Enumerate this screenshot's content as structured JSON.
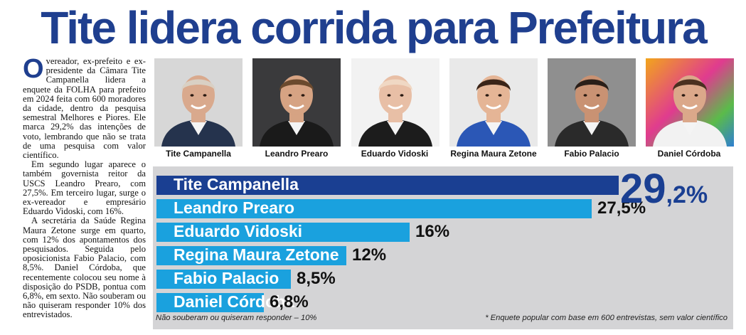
{
  "headline": "Tite lidera corrida para Prefeitura",
  "article": {
    "dropcap": "O",
    "paragraphs": [
      "vereador, ex-prefeito e ex-presidente da Câmara Tite Campanella lidera a enquete da FOLHA para prefeito em 2024 feita com 600 moradores da cidade, dentro da pesquisa semestral Melhores e Piores. Ele marca 29,2% das intenções de voto, lembrando que não se trata de uma pesquisa com valor científico.",
      "Em segundo lugar aparece o também governista reitor da USCS Leandro Prearo, com 27,5%. Em terceiro lugar, surge o ex-vereador e empresário Eduardo Vidoski, com 16%.",
      "A secretária da Saúde Regina Maura Zetone surge em quarto, com 12% dos apontamentos dos pesquisados. Seguida pelo oposicionista Fabio Palacio, com 8,5%. Daniel Córdoba, que recentemente colocou seu nome à disposição do PSDB, pontua com 6,8%, em sexto. Não souberam ou não quiseram responder 10% dos entrevistados."
    ]
  },
  "candidates": [
    {
      "name": "Tite Campanella",
      "photo_bg": "#d7d7d7",
      "suit": "#25334d",
      "hair": "#d9d0c4",
      "skin": "#d9a98d"
    },
    {
      "name": "Leandro Prearo",
      "photo_bg": "#3a3a3c",
      "suit": "#1a1a1a",
      "hair": "#6b4a2e",
      "skin": "#d6a383"
    },
    {
      "name": "Eduardo Vidoski",
      "photo_bg": "#f2f2f2",
      "suit": "#1c1c1c",
      "hair": "#f0d8c4",
      "skin": "#e8bfa6"
    },
    {
      "name": "Regina Maura Zetone",
      "photo_bg": "#e9e9e9",
      "suit": "#2b57b6",
      "hair": "#3a2418",
      "skin": "#e5b596"
    },
    {
      "name": "Fabio Palacio",
      "photo_bg": "#8f8f8f",
      "suit": "#2a2a2a",
      "hair": "#2a1f19",
      "skin": "#c99273"
    },
    {
      "name": "Daniel Córdoba",
      "photo_bg": "#5bbb4a",
      "suit": "#f2f2f2",
      "hair": "#4a3020",
      "skin": "#dba88a"
    }
  ],
  "chart_data": {
    "type": "bar",
    "categories": [
      "Tite Campanella",
      "Leandro Prearo",
      "Eduardo Vidoski",
      "Regina Maura Zetone",
      "Fabio Palacio",
      "Daniel Córdoba"
    ],
    "values": [
      29.2,
      27.5,
      16,
      12,
      8.5,
      6.8
    ],
    "value_labels": [
      "29,2%",
      "27,5%",
      "16%",
      "12%",
      "8,5%",
      "6,8%"
    ],
    "top_value_integer": "29",
    "top_value_decimal": ",2%",
    "colors": {
      "leader": "#1a3f92",
      "others": "#1aa1de",
      "panel": "#d4d4d6"
    }
  },
  "footnotes": {
    "left": "Não souberam ou quiseram responder – 10%",
    "right": "* Enquete popular com base em 600 entrevistas, sem valor científico"
  }
}
